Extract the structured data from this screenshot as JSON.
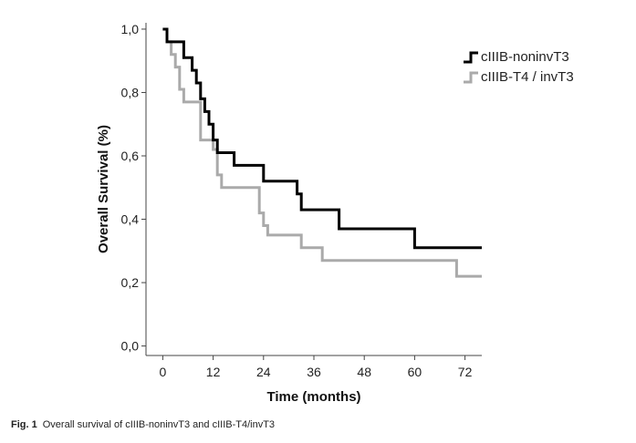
{
  "chart_data": {
    "type": "line",
    "step": true,
    "xlabel": "Time (months)",
    "ylabel": "Overall Survival (%)",
    "xlim": [
      -4,
      76
    ],
    "ylim": [
      -0.03,
      1.02
    ],
    "xticks": [
      0,
      12,
      24,
      36,
      48,
      60,
      72
    ],
    "xtick_labels": [
      "0",
      "12",
      "24",
      "36",
      "48",
      "60",
      "72"
    ],
    "yticks": [
      0.0,
      0.2,
      0.4,
      0.6,
      0.8,
      1.0
    ],
    "ytick_labels": [
      "0,0",
      "0,2",
      "0,4",
      "0,6",
      "0,8",
      "1,0"
    ],
    "legend_position": "top-right",
    "grid": false,
    "series": [
      {
        "name": "cIIIB-noninvT3",
        "color": "#000000",
        "x": [
          0,
          1,
          2,
          5,
          6,
          7,
          8,
          9,
          10,
          11,
          12,
          13,
          14,
          17,
          24,
          32,
          33,
          42,
          60,
          76
        ],
        "y": [
          1.0,
          0.96,
          0.96,
          0.91,
          0.91,
          0.87,
          0.83,
          0.78,
          0.74,
          0.7,
          0.65,
          0.61,
          0.61,
          0.57,
          0.52,
          0.48,
          0.43,
          0.37,
          0.31,
          0.31
        ]
      },
      {
        "name": "cIIIB-T4 / invT3",
        "color": "#aaaaaa",
        "x": [
          0,
          1,
          2,
          3,
          4,
          5,
          6,
          9,
          10,
          12,
          13,
          14,
          23,
          24,
          25,
          27,
          33,
          38,
          70,
          76
        ],
        "y": [
          1.0,
          0.96,
          0.92,
          0.88,
          0.81,
          0.77,
          0.77,
          0.65,
          0.65,
          0.62,
          0.54,
          0.5,
          0.42,
          0.38,
          0.35,
          0.35,
          0.31,
          0.27,
          0.22,
          0.22
        ]
      }
    ]
  },
  "caption": {
    "label": "Fig. 1",
    "text": "Overall survival of cIIIB-noninvT3 and cIIIB-T4/invT3"
  }
}
